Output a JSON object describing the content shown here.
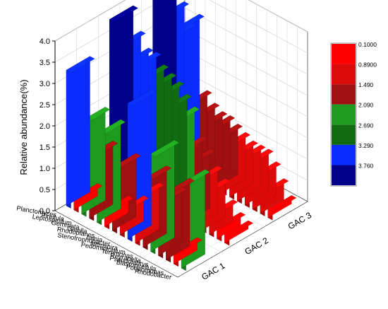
{
  "chart_data": {
    "type": "bar3d",
    "ylabel": "Relative abundance(%)",
    "zlim": [
      0.0,
      4.0
    ],
    "z_ticks": [
      "0.0",
      "0.5",
      "1.0",
      "1.5",
      "2.0",
      "2.5",
      "3.0",
      "3.5",
      "4.0"
    ],
    "categories": [
      "Planctomyces",
      "Pirellula",
      "Leptospirillum",
      "Gemmata",
      "Gaiella",
      "Rhodoplanes",
      "Iamia",
      "Stenotrophobacter",
      "Nitrospira",
      "Pedomicrobium",
      "Terrimonas",
      "Reyranella",
      "Pseudolabrys",
      "Blastopirellula",
      "Polaromonas",
      "Rhodobacter"
    ],
    "series": [
      {
        "name": "GAC 1",
        "values": [
          3.2,
          0.3,
          2.2,
          1.5,
          2.1,
          0.4,
          1.5,
          0.6,
          3.2,
          1.1,
          1.6,
          2.3,
          1.3,
          1.6,
          0.3,
          2.0
        ]
      },
      {
        "name": "GAC 2",
        "values": [
          3.8,
          3.3,
          3.0,
          3.0,
          2.8,
          2.7,
          2.6,
          2.4,
          2.2,
          1.6,
          1.4,
          1.1,
          0.9,
          0.5,
          0.3,
          0.2
        ]
      },
      {
        "name": "GAC 3",
        "values": [
          4.0,
          3.4,
          3.0,
          3.3,
          1.6,
          1.4,
          1.3,
          1.3,
          1.2,
          1.1,
          1.0,
          1.0,
          1.0,
          0.8,
          0.5,
          0.2
        ]
      }
    ],
    "legend": {
      "position": "right",
      "levels": [
        "0.1000",
        "0.8900",
        "1.490",
        "2.090",
        "2.690",
        "3.290",
        "3.760"
      ],
      "colors": [
        "#ff0000",
        "#dd0a0a",
        "#a01010",
        "#1e9a1e",
        "#116c11",
        "#0a2cff",
        "#00008b"
      ]
    },
    "grid": true
  }
}
